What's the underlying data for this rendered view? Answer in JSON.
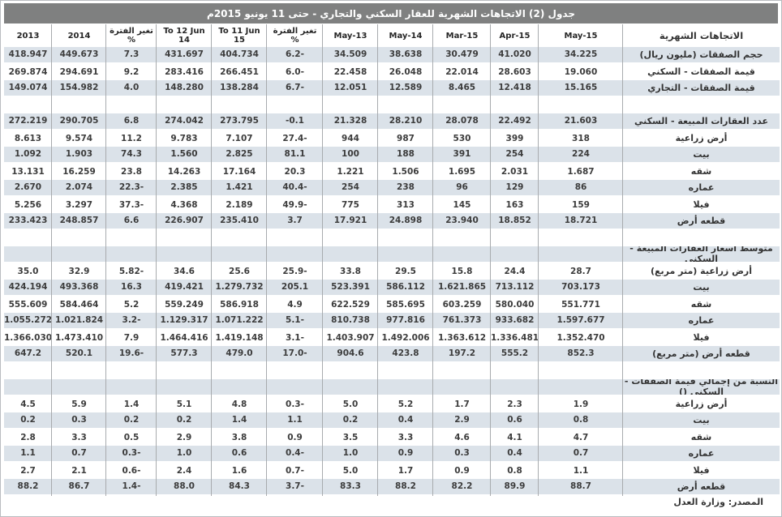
{
  "title": "جدول (2) الاتجاهات الشهرية للعقار السكني والتجاري -  حتى 11 يونيو 2015م",
  "source_note": "المصدر: وزارة العدل",
  "colors": {
    "title_bar_bg": "#7f8080",
    "stripe_row_bg": "#dbe2e9",
    "grid_line": "#a8abae",
    "text": "#3c3c3c"
  },
  "table": {
    "headers": [
      "2013",
      "2014",
      "تغير الفترة\n%",
      "To 12 Jun 14",
      "To 11 Jun\n15",
      "تغير الفترة\n%",
      "May-13",
      "May-14",
      "Mar-15",
      "Apr-15",
      "May-15",
      "الاتجاهات الشهرية"
    ],
    "rows": [
      {
        "type": "data",
        "label": "حجم الصفقات (مليون ريال)",
        "values": [
          "418.947",
          "449.673",
          "7.3",
          "431.697",
          "404.734",
          "6.2-",
          "34.509",
          "38.638",
          "30.479",
          "41.020",
          "34.225"
        ]
      },
      {
        "type": "data",
        "label": "قيمة الصفقات - السكني",
        "values": [
          "269.874",
          "294.691",
          "9.2",
          "283.416",
          "266.451",
          "6.0-",
          "22.458",
          "26.048",
          "22.014",
          "28.603",
          "19.060"
        ]
      },
      {
        "type": "data",
        "label": "قيمة الصفقات - التجاري",
        "values": [
          "149.074",
          "154.982",
          "4.0",
          "148.280",
          "138.284",
          "6.7-",
          "12.051",
          "12.589",
          "8.465",
          "12.418",
          "15.165"
        ]
      },
      {
        "type": "empty"
      },
      {
        "type": "data",
        "label": "عدد العقارات المبيعة - السكني",
        "values": [
          "272.219",
          "290.705",
          "6.8",
          "274.042",
          "273.795",
          "-0.1",
          "21.328",
          "28.210",
          "28.078",
          "22.492",
          "21.603"
        ]
      },
      {
        "type": "data",
        "label": "أرض زراعية",
        "values": [
          "8.613",
          "9.574",
          "11.2",
          "9.783",
          "7.107",
          "27.4-",
          "944",
          "987",
          "530",
          "399",
          "318"
        ]
      },
      {
        "type": "data",
        "label": "بيت",
        "values": [
          "1.092",
          "1.903",
          "74.3",
          "1.560",
          "2.825",
          "81.1",
          "100",
          "188",
          "391",
          "254",
          "224"
        ]
      },
      {
        "type": "data",
        "label": "شقه",
        "values": [
          "13.131",
          "16.259",
          "23.8",
          "14.263",
          "17.164",
          "20.3",
          "1.221",
          "1.506",
          "1.695",
          "2.031",
          "1.687"
        ]
      },
      {
        "type": "data",
        "label": "عماره",
        "values": [
          "2.670",
          "2.074",
          "22.3-",
          "2.385",
          "1.421",
          "40.4-",
          "254",
          "238",
          "96",
          "129",
          "86"
        ]
      },
      {
        "type": "data",
        "label": "فيلا",
        "values": [
          "5.256",
          "3.297",
          "37.3-",
          "4.368",
          "2.189",
          "49.9-",
          "775",
          "313",
          "145",
          "163",
          "159"
        ]
      },
      {
        "type": "data",
        "label": "قطعه أرض",
        "values": [
          "233.423",
          "248.857",
          "6.6",
          "226.907",
          "235.410",
          "3.7",
          "17.921",
          "24.898",
          "23.940",
          "18.852",
          "18.721"
        ]
      },
      {
        "type": "empty"
      },
      {
        "type": "section",
        "label": "متوسط أسعار العقارات المبيعة - السكني"
      },
      {
        "type": "data",
        "label": "أرض زراعية (متر مربع)",
        "values": [
          "35.0",
          "32.9",
          "5.82-",
          "34.6",
          "25.6",
          "25.9-",
          "33.8",
          "29.5",
          "15.8",
          "24.4",
          "28.7"
        ]
      },
      {
        "type": "data",
        "label": "بيت",
        "values": [
          "424.194",
          "493.368",
          "16.3",
          "419.421",
          "1.279.732",
          "205.1",
          "523.391",
          "586.112",
          "1.621.865",
          "713.112",
          "703.173"
        ]
      },
      {
        "type": "data",
        "label": "شقه",
        "values": [
          "555.609",
          "584.464",
          "5.2",
          "559.249",
          "586.918",
          "4.9",
          "622.529",
          "585.695",
          "603.259",
          "580.040",
          "551.771"
        ]
      },
      {
        "type": "data",
        "label": "عماره",
        "values": [
          "1.055.272",
          "1.021.824",
          "3.2-",
          "1.129.317",
          "1.071.222",
          "5.1-",
          "810.738",
          "977.816",
          "761.373",
          "933.682",
          "1.597.677"
        ]
      },
      {
        "type": "data",
        "label": "فيلا",
        "values": [
          "1.366.030",
          "1.473.410",
          "7.9",
          "1.464.416",
          "1.419.148",
          "3.1-",
          "1.403.907",
          "1.492.006",
          "1.363.612",
          "1.336.481",
          "1.352.470"
        ]
      },
      {
        "type": "data",
        "label": "قطعه أرض (متر مربع)",
        "values": [
          "647.2",
          "520.1",
          "19.6-",
          "577.3",
          "479.0",
          "17.0-",
          "904.6",
          "423.8",
          "197.2",
          "555.2",
          "852.3"
        ]
      },
      {
        "type": "empty"
      },
      {
        "type": "section",
        "label": "النسبة من إجمالي قيمة الصفقات - السكني ()"
      },
      {
        "type": "data",
        "label": "أرض زراعية",
        "values": [
          "4.5",
          "5.9",
          "1.4",
          "5.1",
          "4.8",
          "0.3-",
          "5.0",
          "5.2",
          "1.7",
          "2.3",
          "1.9"
        ]
      },
      {
        "type": "data",
        "label": "بيت",
        "values": [
          "0.2",
          "0.3",
          "0.2",
          "0.2",
          "1.4",
          "1.1",
          "0.2",
          "0.4",
          "2.9",
          "0.6",
          "0.8"
        ]
      },
      {
        "type": "data",
        "label": "شقه",
        "values": [
          "2.8",
          "3.3",
          "0.5",
          "2.9",
          "3.8",
          "0.9",
          "3.5",
          "3.3",
          "4.6",
          "4.1",
          "4.7"
        ]
      },
      {
        "type": "data",
        "label": "عماره",
        "values": [
          "1.1",
          "0.7",
          "0.3-",
          "1.0",
          "0.6",
          "0.4-",
          "1.0",
          "0.9",
          "0.3",
          "0.4",
          "0.7"
        ]
      },
      {
        "type": "data",
        "label": "فيلا",
        "values": [
          "2.7",
          "2.1",
          "0.6-",
          "2.4",
          "1.6",
          "0.7-",
          "5.0",
          "1.7",
          "0.9",
          "0.8",
          "1.1"
        ]
      },
      {
        "type": "data",
        "label": "قطعه أرض",
        "values": [
          "88.2",
          "86.7",
          "1.4-",
          "88.0",
          "84.3",
          "3.7-",
          "83.3",
          "88.2",
          "82.2",
          "89.9",
          "88.7"
        ]
      }
    ]
  }
}
